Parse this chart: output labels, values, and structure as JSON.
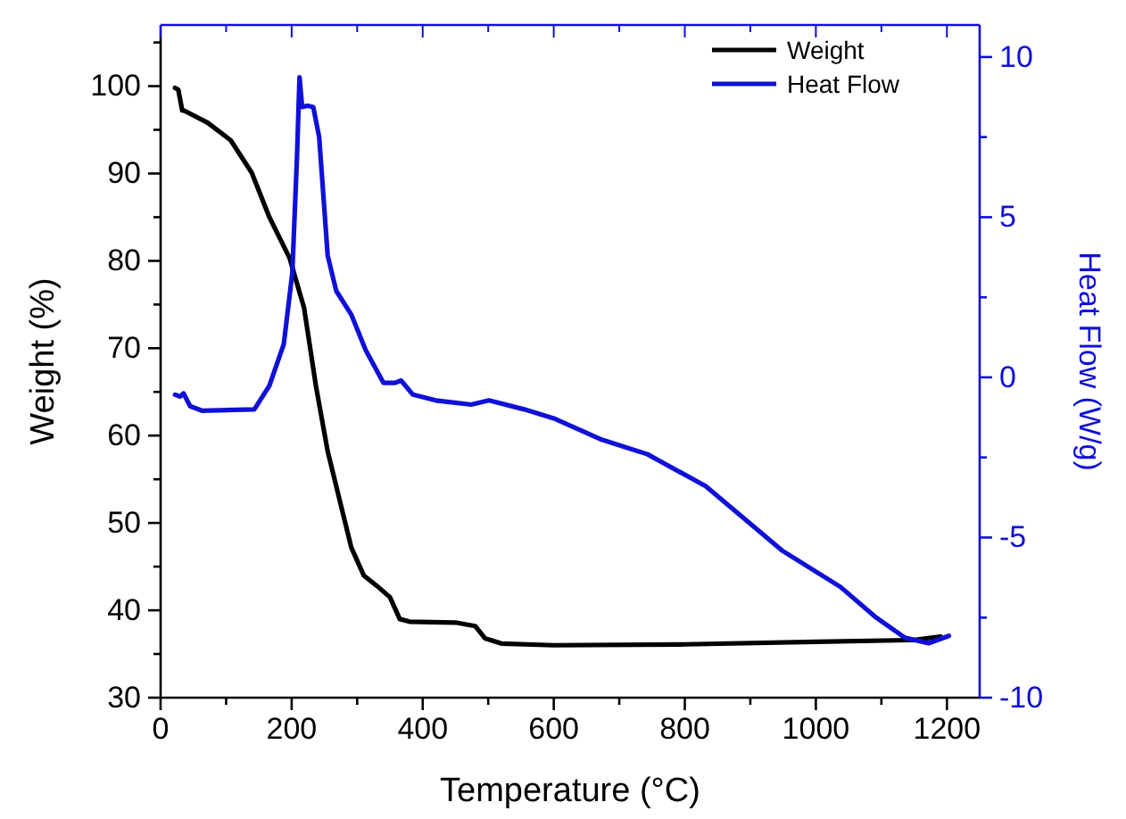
{
  "chart_data": {
    "type": "line",
    "xlabel": "Temperature (°C)",
    "ylabel": "Weight (%)",
    "y2label": "Heat Flow (W/g)",
    "xlim": [
      0,
      1250
    ],
    "xticks": [
      0,
      {
        "value": 100,
        "label": null
      },
      200,
      {
        "value": 300,
        "label": null
      },
      400,
      {
        "value": 500,
        "label": null
      },
      600,
      {
        "value": 700,
        "label": null
      },
      800,
      {
        "value": 900,
        "label": null
      },
      1000,
      {
        "value": 1100,
        "label": null
      },
      1200
    ],
    "ylim": [
      30,
      107
    ],
    "yticks": [
      30,
      {
        "value": 35,
        "label": null
      },
      40,
      {
        "value": 45,
        "label": null
      },
      50,
      {
        "value": 55,
        "label": null
      },
      60,
      {
        "value": 65,
        "label": null
      },
      70,
      {
        "value": 75,
        "label": null
      },
      80,
      {
        "value": 85,
        "label": null
      },
      90,
      {
        "value": 95,
        "label": null
      },
      100,
      {
        "value": 105,
        "label": null
      }
    ],
    "y2lim": [
      -10,
      11
    ],
    "y2ticks": [
      -10,
      {
        "value": -7.5,
        "label": null
      },
      -5,
      {
        "value": -2.5,
        "label": null
      },
      0,
      {
        "value": 2.5,
        "label": null
      },
      5,
      {
        "value": 7.5,
        "label": null
      },
      10
    ],
    "grid": false,
    "legend": "top right",
    "line_style": "solid",
    "marker": "none",
    "series": [
      {
        "name": "Weight",
        "color": "#000000",
        "x": [
          22,
          27,
          33,
          36,
          72,
          107,
          139,
          166,
          197,
          219,
          237,
          255,
          291,
          310,
          330,
          350,
          365,
          380,
          450,
          480,
          495,
          520,
          600,
          800,
          1000,
          1150,
          1190
        ],
        "values": [
          99.8,
          99.6,
          97.2,
          97.2,
          95.8,
          93.8,
          90.1,
          85.0,
          80.3,
          74.6,
          65.7,
          58.2,
          47.2,
          44,
          42.8,
          41.5,
          39,
          38.7,
          38.6,
          38.2,
          36.8,
          36.2,
          36.0,
          36.1,
          36.4,
          36.6,
          37
        ]
      },
      {
        "name": "Heat Flow",
        "color": "#1010d8",
        "axis": "y2",
        "x": [
          22,
          30,
          35,
          45,
          63,
          143,
          166,
          188,
          201,
          208,
          212,
          216,
          224,
          233,
          242,
          255,
          268,
          291,
          313,
          340,
          358,
          367,
          385,
          420,
          474,
          501,
          555,
          600,
          671,
          743,
          832,
          948,
          1038,
          1092,
          1136,
          1172,
          1203
        ],
        "values": [
          -0.54,
          -0.6,
          -0.5,
          -0.9,
          -1.04,
          -1.0,
          -0.26,
          1.04,
          3.26,
          6.8,
          9.37,
          8.44,
          8.48,
          8.44,
          7.5,
          3.8,
          2.7,
          1.96,
          0.85,
          -0.17,
          -0.17,
          -0.1,
          -0.54,
          -0.72,
          -0.85,
          -0.72,
          -1.0,
          -1.28,
          -1.93,
          -2.4,
          -3.4,
          -5.4,
          -6.55,
          -7.5,
          -8.13,
          -8.3,
          -8.07
        ]
      }
    ]
  }
}
